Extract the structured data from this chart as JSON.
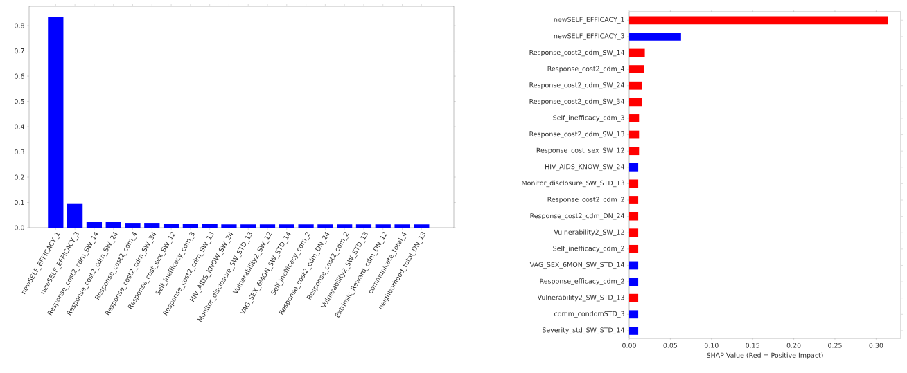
{
  "chart_data": [
    {
      "type": "bar",
      "categories": [
        "newSELF_EFFICACY_1",
        "newSELF_EFFICACY_3",
        "Response_cost2_cdm_SW_14",
        "Response_cost2_cdm_SW_24",
        "Response_cost2_cdm_4",
        "Response_cost2_cdm_SW_34",
        "Response_cost_sex_SW_12",
        "Self_inefficacy_cdm_3",
        "Response_cost2_cdm_SW_13",
        "HIV_AIDS_KNOW_SW_24",
        "Monitor_disclosure_SW_STD_13",
        "Vulnerability2_SW_12",
        "VAG_SEX_6MON_SW_STD_14",
        "Self_inefficacy_cdm_2",
        "Response_cost2_cdm_DN_24",
        "Response_cost2_cdm_2",
        "Vulnerability2_SW_STD_13",
        "Extrinsic_Reward_cdm_DN_12",
        "communicate_total_4",
        "neighborhood_total_DN_13"
      ],
      "values": [
        0.835,
        0.094,
        0.022,
        0.022,
        0.019,
        0.019,
        0.015,
        0.015,
        0.015,
        0.013,
        0.013,
        0.013,
        0.013,
        0.013,
        0.013,
        0.013,
        0.013,
        0.013,
        0.013,
        0.013
      ],
      "color": "#0000ff",
      "ylim": [
        0,
        0.877
      ],
      "yticks": [
        {
          "value": 0,
          "label": "0.0"
        },
        0.1,
        0.2,
        0.3,
        0.4,
        0.5,
        0.6,
        0.7,
        0.8
      ]
    },
    {
      "type": "bar",
      "orientation": "horizontal",
      "xlabel": "SHAP Value (Red = Positive Impact)",
      "categories": [
        "newSELF_EFFICACY_1",
        "newSELF_EFFICACY_3",
        "Response_cost2_cdm_SW_14",
        "Response_cost2_cdm_4",
        "Response_cost2_cdm_SW_24",
        "Response_cost2_cdm_SW_34",
        "Self_inefficacy_cdm_3",
        "Response_cost2_cdm_SW_13",
        "Response_cost_sex_SW_12",
        "HIV_AIDS_KNOW_SW_24",
        "Monitor_disclosure_SW_STD_13",
        "Response_cost2_cdm_2",
        "Response_cost2_cdm_DN_24",
        "Vulnerability2_SW_12",
        "Self_inefficacy_cdm_2",
        "VAG_SEX_6MON_SW_STD_14",
        "Response_efficacy_cdm_2",
        "Vulnerability2_SW_STD_13",
        "comm_condomSTD_3",
        "Severity_std_SW_STD_14"
      ],
      "values": [
        0.314,
        0.063,
        0.019,
        0.018,
        0.016,
        0.016,
        0.012,
        0.012,
        0.012,
        0.011,
        0.011,
        0.011,
        0.011,
        0.011,
        0.011,
        0.011,
        0.011,
        0.011,
        0.011,
        0.011
      ],
      "colors": [
        "#ff0000",
        "#0000ff",
        "#ff0000",
        "#ff0000",
        "#ff0000",
        "#ff0000",
        "#ff0000",
        "#ff0000",
        "#ff0000",
        "#0000ff",
        "#ff0000",
        "#ff0000",
        "#ff0000",
        "#ff0000",
        "#ff0000",
        "#0000ff",
        "#0000ff",
        "#ff0000",
        "#0000ff",
        "#0000ff"
      ],
      "xlim": [
        0,
        0.33
      ],
      "xticks": [
        {
          "value": 0,
          "label": "0.00"
        },
        {
          "value": 0.05,
          "label": "0.05"
        },
        {
          "value": 0.1,
          "label": "0.10"
        },
        {
          "value": 0.15,
          "label": "0.15"
        },
        {
          "value": 0.2,
          "label": "0.20"
        },
        {
          "value": 0.25,
          "label": "0.25"
        },
        {
          "value": 0.3,
          "label": "0.30"
        }
      ]
    }
  ]
}
